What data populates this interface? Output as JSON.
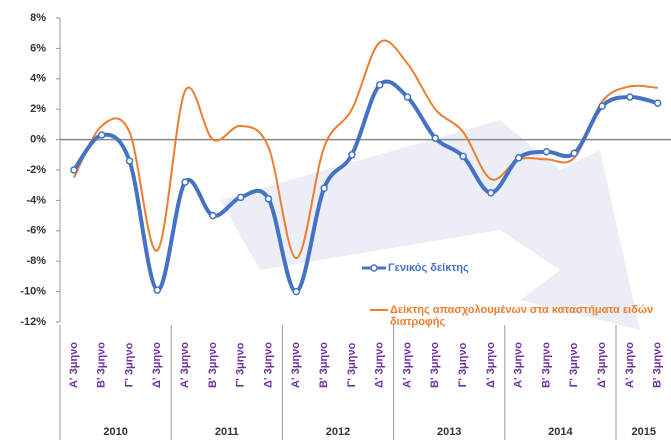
{
  "chart_data": {
    "type": "line",
    "categories": [
      "Α' 3μηνο",
      "Β' 3μηνο",
      "Γ' 3μηνο",
      "Δ' 3μηνο",
      "Α' 3μηνο",
      "Β' 3μηνο",
      "Γ' 3μηνο",
      "Δ' 3μηνο",
      "Α' 3μηνο",
      "Β' 3μηνο",
      "Γ' 3μηνο",
      "Δ' 3μηνο",
      "Α' 3μηνο",
      "Β' 3μηνο",
      "Γ' 3μηνο",
      "Δ' 3μηνο",
      "Α' 3μηνο",
      "Β' 3μηνο",
      "Γ' 3μηνο",
      "Δ' 3μηνο",
      "Α' 3μηνο",
      "Β' 3μηνο"
    ],
    "years": [
      "2010",
      "2011",
      "2012",
      "2013",
      "2014",
      "2015"
    ],
    "series": [
      {
        "name": "Γενικός δείκτης",
        "color": "#4472c4",
        "markers": true,
        "values": [
          -2.0,
          0.3,
          -1.4,
          -9.9,
          -2.8,
          -5.0,
          -3.8,
          -3.9,
          -10.0,
          -3.2,
          -1.0,
          3.6,
          2.8,
          0.1,
          -1.1,
          -3.5,
          -1.2,
          -0.8,
          -0.9,
          2.2,
          2.8,
          2.4
        ]
      },
      {
        "name": "Δείκτης απασχολουμένων στα καταστήματα ειδών διατροφής",
        "color": "#ed7d31",
        "markers": false,
        "values": [
          -2.5,
          0.9,
          0.5,
          -7.3,
          3.2,
          0.0,
          0.9,
          -0.5,
          -7.8,
          -0.5,
          2.0,
          6.4,
          5.0,
          2.0,
          0.5,
          -2.6,
          -1.3,
          -1.3,
          -1.2,
          2.5,
          3.5,
          3.4
        ]
      }
    ],
    "ylim": [
      -12,
      8
    ],
    "yticks": [
      {
        "value": -12,
        "label": "-12%"
      },
      {
        "value": -10,
        "label": "-10%"
      },
      {
        "value": -8,
        "label": "-8%"
      },
      {
        "value": -6,
        "label": "-6%"
      },
      {
        "value": -4,
        "label": "-4%"
      },
      {
        "value": -2,
        "label": "-2%"
      },
      {
        "value": 0,
        "label": "0%"
      },
      {
        "value": 2,
        "label": "2%"
      },
      {
        "value": 4,
        "label": "4%"
      },
      {
        "value": 6,
        "label": "6%"
      },
      {
        "value": 8,
        "label": "8%"
      }
    ],
    "grid": false
  }
}
